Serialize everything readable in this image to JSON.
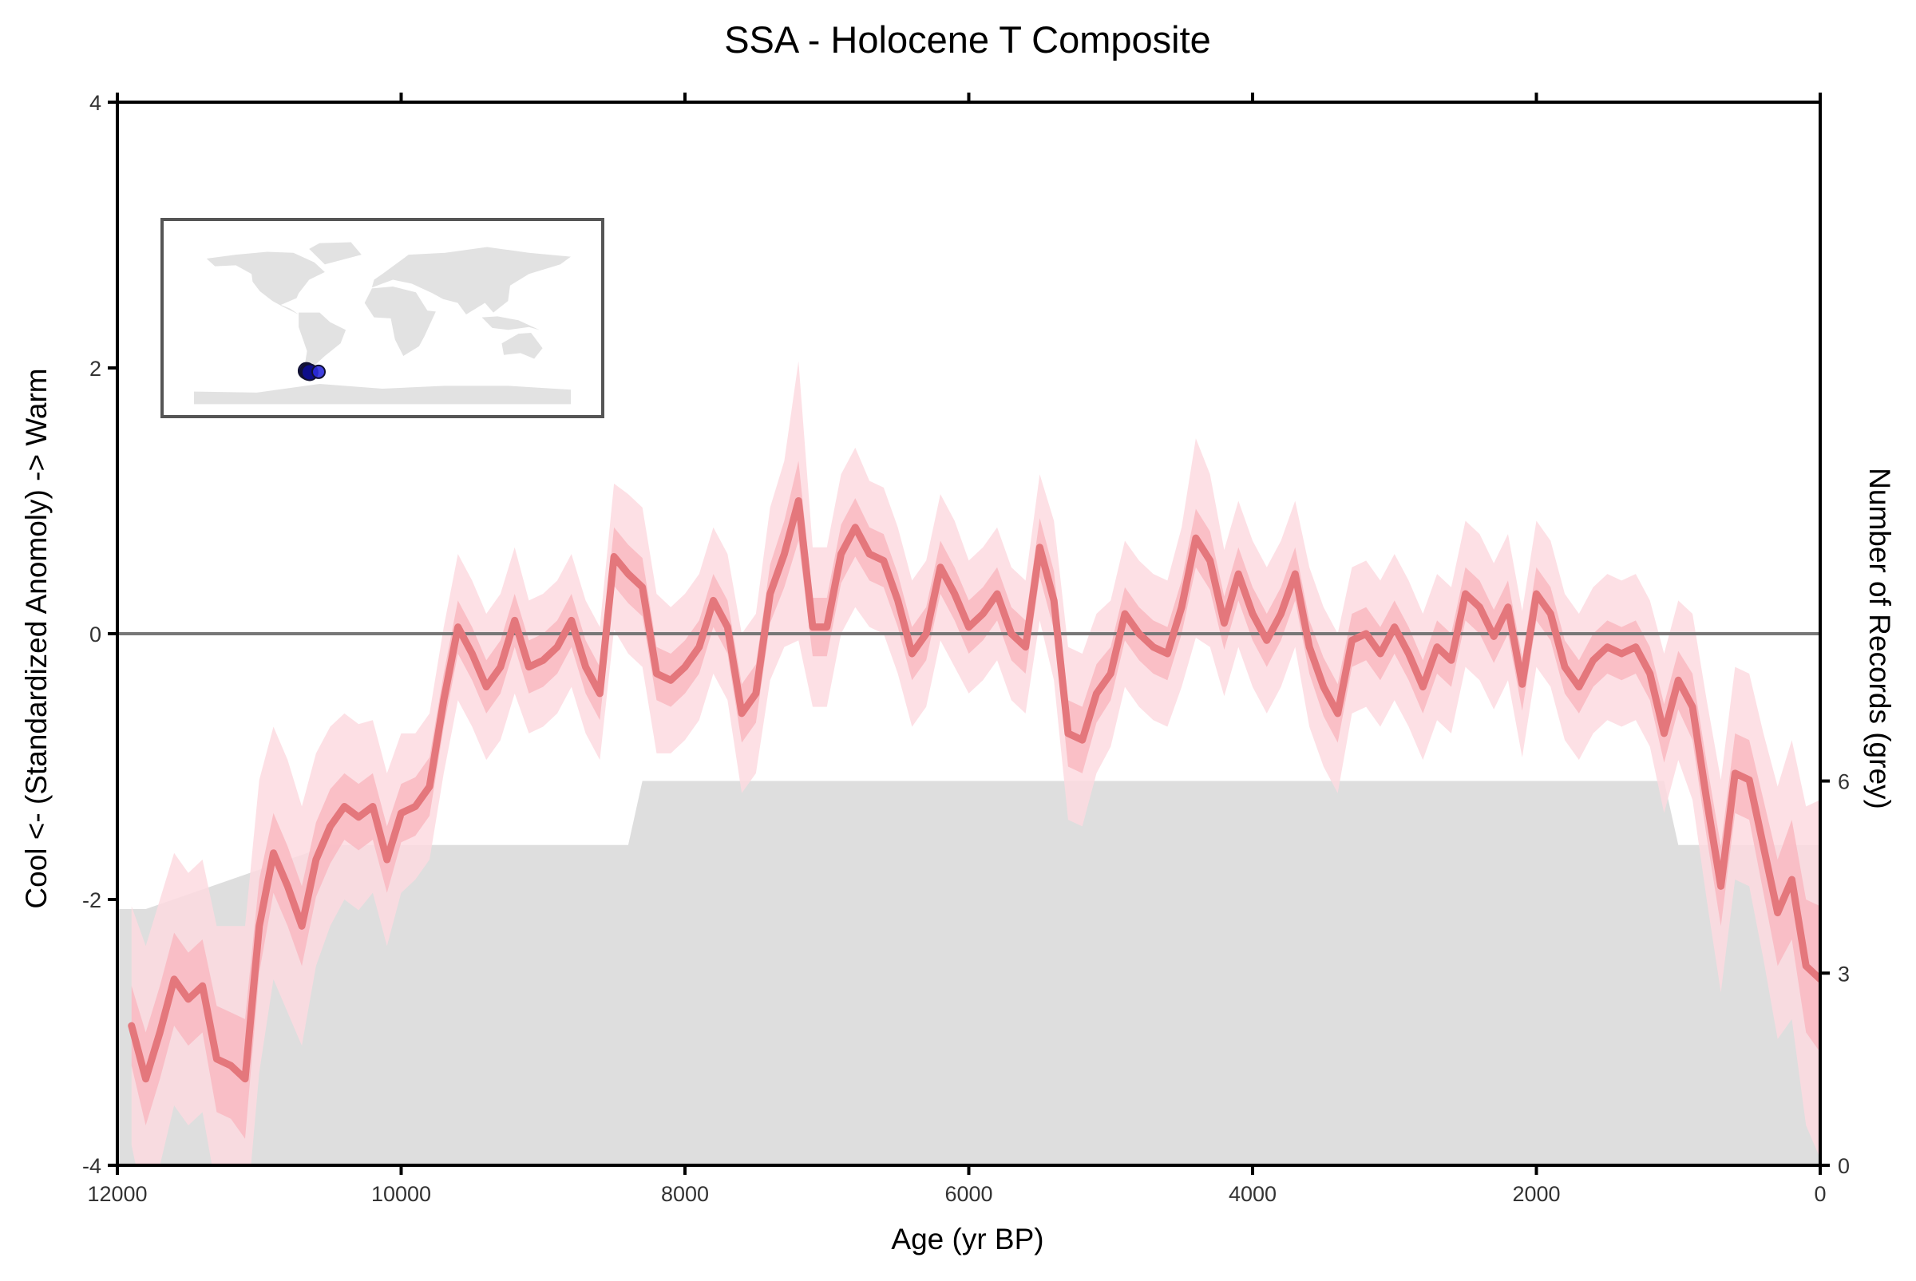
{
  "chart_data": {
    "type": "line",
    "title": "SSA - Holocene T Composite",
    "xlabel": "Age (yr BP)",
    "ylabel": "Cool <- (Standardized Anomoly) -> Warm",
    "y2label": "Number of Records (grey)",
    "xlim": [
      12000,
      0
    ],
    "ylim": [
      -4,
      4
    ],
    "y2lim": [
      0,
      16.6
    ],
    "x_ticks": [
      12000,
      10000,
      8000,
      6000,
      4000,
      2000,
      0
    ],
    "x_tick_labels": [
      "12000",
      "10000",
      "8000",
      "6000",
      "4000",
      "2000",
      "0"
    ],
    "y_ticks": [
      -4,
      -2,
      0,
      2,
      4
    ],
    "y_tick_labels": [
      "-4",
      "-2",
      "0",
      "2",
      "4"
    ],
    "y2_ticks": [
      0,
      3,
      6
    ],
    "y2_tick_labels": [
      "0",
      "3",
      "6"
    ],
    "zero_line": 0,
    "grid": false,
    "colors": {
      "composite_line": "#e4777c",
      "band_inner": "#f9b9c1",
      "band_outer": "#fddbe1",
      "records_fill": "#dedede",
      "zero_line": "#777777",
      "map_land": "#e2e2e2",
      "site_marker": "#2b2bdb",
      "site_marker_dark": "#0d0d8a"
    },
    "composite": {
      "x": [
        11900,
        11800,
        11700,
        11600,
        11500,
        11400,
        11300,
        11200,
        11100,
        11000,
        10900,
        10800,
        10700,
        10600,
        10500,
        10400,
        10300,
        10200,
        10100,
        10000,
        9900,
        9800,
        9700,
        9600,
        9500,
        9400,
        9300,
        9200,
        9100,
        9000,
        8900,
        8800,
        8700,
        8600,
        8500,
        8400,
        8300,
        8200,
        8100,
        8000,
        7900,
        7800,
        7700,
        7600,
        7500,
        7400,
        7300,
        7200,
        7100,
        7000,
        6900,
        6800,
        6700,
        6600,
        6500,
        6400,
        6300,
        6200,
        6100,
        6000,
        5900,
        5800,
        5700,
        5600,
        5500,
        5400,
        5300,
        5200,
        5100,
        5000,
        4900,
        4800,
        4700,
        4600,
        4500,
        4400,
        4300,
        4200,
        4100,
        4000,
        3900,
        3800,
        3700,
        3600,
        3500,
        3400,
        3300,
        3200,
        3100,
        3000,
        2900,
        2800,
        2700,
        2600,
        2500,
        2400,
        2300,
        2200,
        2100,
        2000,
        1900,
        1800,
        1700,
        1600,
        1500,
        1400,
        1300,
        1200,
        1100,
        1000,
        900,
        800,
        700,
        600,
        500,
        400,
        300,
        200,
        100,
        0
      ],
      "y": [
        -2.95,
        -3.35,
        -3.0,
        -2.6,
        -2.75,
        -2.65,
        -3.2,
        -3.25,
        -3.35,
        -2.2,
        -1.65,
        -1.9,
        -2.2,
        -1.7,
        -1.45,
        -1.3,
        -1.38,
        -1.3,
        -1.7,
        -1.35,
        -1.3,
        -1.15,
        -0.5,
        0.05,
        -0.15,
        -0.4,
        -0.25,
        0.1,
        -0.25,
        -0.2,
        -0.1,
        0.1,
        -0.25,
        -0.45,
        0.58,
        0.45,
        0.35,
        -0.3,
        -0.35,
        -0.25,
        -0.1,
        0.25,
        0.05,
        -0.6,
        -0.45,
        0.3,
        0.6,
        1.0,
        0.05,
        0.05,
        0.6,
        0.8,
        0.6,
        0.55,
        0.25,
        -0.15,
        0.0,
        0.5,
        0.3,
        0.05,
        0.15,
        0.3,
        0.0,
        -0.1,
        0.65,
        0.25,
        -0.75,
        -0.8,
        -0.45,
        -0.3,
        0.15,
        0.0,
        -0.1,
        -0.15,
        0.2,
        0.72,
        0.55,
        0.08,
        0.45,
        0.15,
        -0.05,
        0.15,
        0.45,
        -0.1,
        -0.4,
        -0.6,
        -0.05,
        0.0,
        -0.15,
        0.05,
        -0.15,
        -0.4,
        -0.1,
        -0.2,
        0.3,
        0.2,
        -0.02,
        0.2,
        -0.38,
        0.3,
        0.15,
        -0.25,
        -0.4,
        -0.2,
        -0.1,
        -0.15,
        -0.1,
        -0.3,
        -0.75,
        -0.35,
        -0.55,
        -1.25,
        -1.9,
        -1.05,
        -1.1,
        -1.6,
        -2.1,
        -1.85,
        -2.5,
        -2.6
      ],
      "inner_halfwidth": [
        0.3,
        0.35,
        0.35,
        0.35,
        0.35,
        0.35,
        0.4,
        0.4,
        0.45,
        0.35,
        0.3,
        0.3,
        0.3,
        0.28,
        0.28,
        0.25,
        0.25,
        0.25,
        0.25,
        0.22,
        0.22,
        0.22,
        0.2,
        0.2,
        0.2,
        0.2,
        0.2,
        0.2,
        0.2,
        0.2,
        0.2,
        0.2,
        0.2,
        0.2,
        0.22,
        0.22,
        0.22,
        0.2,
        0.2,
        0.2,
        0.2,
        0.2,
        0.2,
        0.22,
        0.22,
        0.22,
        0.25,
        0.3,
        0.22,
        0.22,
        0.22,
        0.22,
        0.2,
        0.2,
        0.2,
        0.2,
        0.2,
        0.2,
        0.2,
        0.2,
        0.2,
        0.2,
        0.2,
        0.2,
        0.22,
        0.22,
        0.25,
        0.25,
        0.22,
        0.2,
        0.2,
        0.2,
        0.2,
        0.2,
        0.2,
        0.22,
        0.22,
        0.2,
        0.2,
        0.2,
        0.2,
        0.2,
        0.2,
        0.2,
        0.22,
        0.22,
        0.2,
        0.2,
        0.2,
        0.2,
        0.2,
        0.2,
        0.2,
        0.2,
        0.2,
        0.2,
        0.2,
        0.2,
        0.2,
        0.2,
        0.2,
        0.2,
        0.2,
        0.2,
        0.2,
        0.2,
        0.2,
        0.2,
        0.22,
        0.22,
        0.25,
        0.28,
        0.3,
        0.3,
        0.3,
        0.35,
        0.4,
        0.45,
        0.5,
        0.55
      ],
      "outer_halfwidth": [
        0.9,
        1.0,
        1.0,
        0.95,
        0.95,
        0.95,
        1.0,
        1.05,
        1.15,
        1.1,
        0.95,
        0.95,
        0.9,
        0.8,
        0.75,
        0.7,
        0.7,
        0.65,
        0.65,
        0.6,
        0.55,
        0.55,
        0.55,
        0.55,
        0.55,
        0.55,
        0.55,
        0.55,
        0.5,
        0.5,
        0.5,
        0.5,
        0.5,
        0.5,
        0.55,
        0.6,
        0.6,
        0.6,
        0.55,
        0.55,
        0.55,
        0.55,
        0.55,
        0.6,
        0.6,
        0.65,
        0.7,
        1.05,
        0.6,
        0.6,
        0.6,
        0.6,
        0.55,
        0.55,
        0.55,
        0.55,
        0.55,
        0.55,
        0.55,
        0.5,
        0.5,
        0.5,
        0.5,
        0.5,
        0.55,
        0.6,
        0.65,
        0.65,
        0.6,
        0.55,
        0.55,
        0.55,
        0.55,
        0.55,
        0.6,
        0.75,
        0.65,
        0.55,
        0.55,
        0.55,
        0.55,
        0.55,
        0.55,
        0.6,
        0.6,
        0.6,
        0.55,
        0.55,
        0.55,
        0.55,
        0.55,
        0.55,
        0.55,
        0.55,
        0.55,
        0.55,
        0.55,
        0.55,
        0.55,
        0.55,
        0.55,
        0.55,
        0.55,
        0.55,
        0.55,
        0.55,
        0.55,
        0.55,
        0.6,
        0.6,
        0.7,
        0.75,
        0.8,
        0.8,
        0.8,
        0.85,
        0.95,
        1.05,
        1.2,
        1.35
      ]
    },
    "record_counts": {
      "x": [
        12000,
        11800,
        10500,
        8400,
        8300,
        1100,
        1000,
        0
      ],
      "n": [
        4,
        4,
        5,
        5,
        6,
        6,
        5,
        5
      ]
    },
    "inset_map": {
      "sites": [
        {
          "lon": -72.5,
          "lat": -50.5
        },
        {
          "lon": -71.0,
          "lat": -51.5
        },
        {
          "lon": -69.5,
          "lat": -52.0
        },
        {
          "lon": -61.0,
          "lat": -51.5
        }
      ]
    }
  }
}
